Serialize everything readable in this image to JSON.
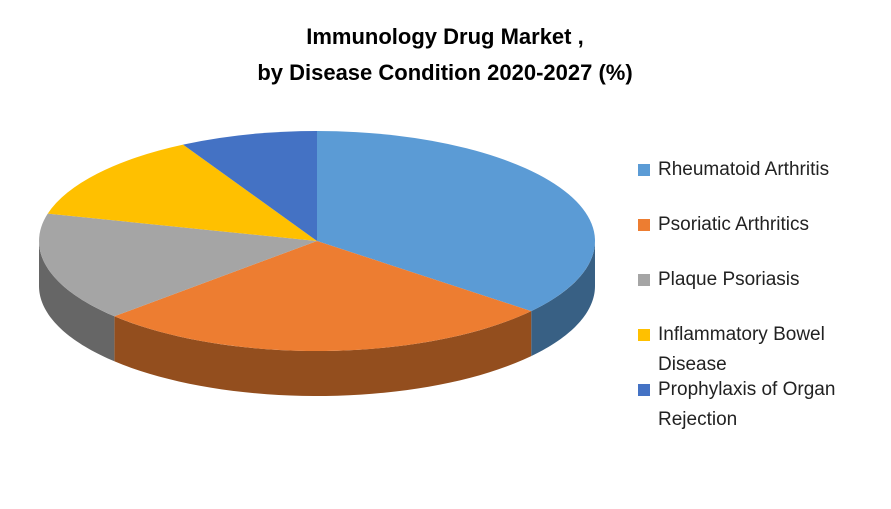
{
  "chart_data": {
    "type": "pie",
    "title": [
      "Immunology Drug Market ,",
      "by Disease Condition 2020-2027 (%)"
    ],
    "categories": [
      "Rheumatoid Arthritis",
      "Psoriatic Arthritics",
      "Plaque Psoriasis",
      "Inflammatory Bowel Disease",
      "Prophylaxis of Organ Rejection"
    ],
    "values": [
      36,
      27,
      16,
      13,
      8
    ],
    "colors": [
      "#5b9bd5",
      "#ed7d31",
      "#a5a5a5",
      "#ffc000",
      "#4472c4"
    ],
    "legend": "right"
  }
}
